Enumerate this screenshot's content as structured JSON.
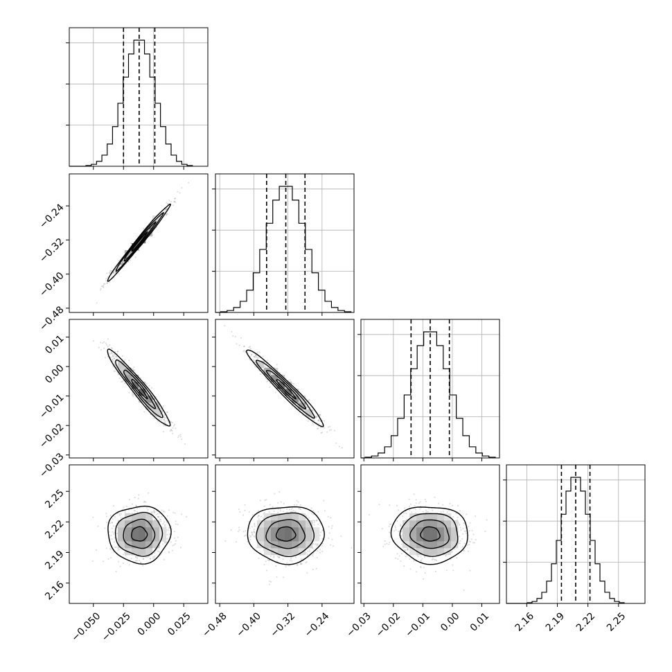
{
  "chart_data": {
    "type": "corner",
    "parameters": [
      {
        "mean": -0.012,
        "std": 0.013,
        "quantiles": [
          -0.025,
          -0.012,
          0.001
        ],
        "range": [
          -0.07,
          0.045
        ],
        "ticks": [
          "−0.050",
          "−0.025",
          "0.000",
          "0.025"
        ],
        "tick_values": [
          -0.05,
          -0.025,
          0.0,
          0.025
        ]
      },
      {
        "mean": -0.325,
        "std": 0.045,
        "quantiles": [
          -0.37,
          -0.325,
          -0.28
        ],
        "range": [
          -0.49,
          -0.165
        ],
        "ticks": [
          "−0.48",
          "−0.40",
          "−0.32",
          "−0.24"
        ],
        "tick_values": [
          -0.48,
          -0.4,
          -0.32,
          -0.24
        ]
      },
      {
        "mean": -0.0075,
        "std": 0.0065,
        "quantiles": [
          -0.014,
          -0.0075,
          -0.001
        ],
        "range": [
          -0.031,
          0.016
        ],
        "ticks": [
          "−0.03",
          "−0.02",
          "−0.01",
          "0.00",
          "0.01"
        ],
        "tick_values": [
          -0.03,
          -0.02,
          -0.01,
          0.0,
          0.01
        ]
      },
      {
        "mean": 2.208,
        "std": 0.014,
        "quantiles": [
          2.194,
          2.208,
          2.222
        ],
        "range": [
          2.14,
          2.276
        ],
        "ticks": [
          "2.16",
          "2.19",
          "2.22",
          "2.25"
        ],
        "tick_values": [
          2.16,
          2.19,
          2.22,
          2.25
        ]
      }
    ],
    "correlations": [
      [
        1.0,
        0.99,
        -0.96,
        0.0
      ],
      [
        0.99,
        1.0,
        -0.97,
        0.0
      ],
      [
        -0.96,
        -0.97,
        1.0,
        -0.05
      ],
      [
        0.0,
        0.0,
        -0.05,
        1.0
      ]
    ],
    "histogram_bins": 20,
    "contour_levels": [
      0.5,
      1.0,
      1.5,
      2.0
    ],
    "grid": true,
    "line_color": "#000000",
    "point_color": "#000000",
    "grid_color": "#b0b0b0"
  }
}
